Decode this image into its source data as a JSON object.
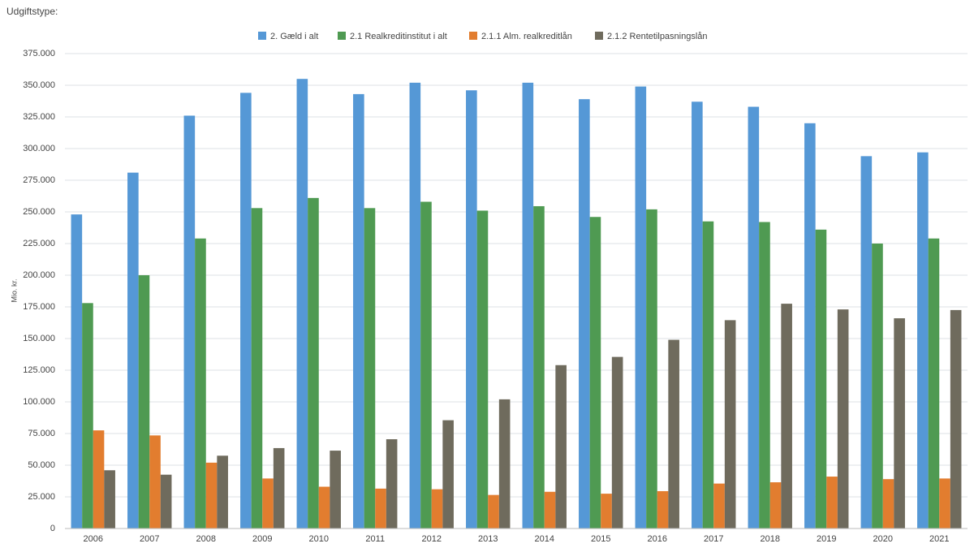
{
  "chart_data": {
    "type": "bar",
    "subtitle": "Udgiftstype:",
    "y_label": "Mio. kr.",
    "categories": [
      "2006",
      "2007",
      "2008",
      "2009",
      "2010",
      "2011",
      "2012",
      "2013",
      "2014",
      "2015",
      "2016",
      "2017",
      "2018",
      "2019",
      "2020",
      "2021"
    ],
    "series": [
      {
        "name": "2. Gæld i alt",
        "color": "#5598d6",
        "values": [
          248000,
          281000,
          326000,
          344000,
          355000,
          343000,
          352000,
          346000,
          352000,
          339000,
          349000,
          337000,
          333000,
          320000,
          294000,
          297000
        ]
      },
      {
        "name": "2.1 Realkreditinstitut i alt",
        "color": "#4f9a52",
        "values": [
          178000,
          200000,
          229000,
          253000,
          261000,
          253000,
          258000,
          251000,
          254500,
          246000,
          252000,
          242500,
          242000,
          236000,
          225000,
          229000
        ]
      },
      {
        "name": "2.1.1 Alm. realkreditlån",
        "color": "#e27d2f",
        "values": [
          77500,
          73500,
          52000,
          39500,
          33000,
          31500,
          31000,
          26500,
          29000,
          27500,
          29500,
          35500,
          36500,
          41000,
          39000,
          39500
        ]
      },
      {
        "name": "2.1.2 Rentetilpasningslån",
        "color": "#6f6b5d",
        "values": [
          46000,
          42500,
          57500,
          63500,
          61500,
          70500,
          85500,
          102000,
          129000,
          135500,
          149000,
          164500,
          177500,
          173000,
          166000,
          172500
        ]
      }
    ],
    "ylim": [
      0,
      375000
    ],
    "yticks": [
      0,
      {
        "value": 25000,
        "label": "25.000"
      },
      {
        "value": 50000,
        "label": "50.000"
      },
      {
        "value": 75000,
        "label": "75.000"
      },
      {
        "value": 100000,
        "label": "100.000"
      },
      {
        "value": 125000,
        "label": "125.000"
      },
      {
        "value": 150000,
        "label": "150.000"
      },
      {
        "value": 175000,
        "label": "175.000"
      },
      {
        "value": 200000,
        "label": "200.000"
      },
      {
        "value": 225000,
        "label": "225.000"
      },
      {
        "value": 250000,
        "label": "250.000"
      },
      {
        "value": 275000,
        "label": "275.000"
      },
      {
        "value": 300000,
        "label": "300.000"
      },
      {
        "value": 325000,
        "label": "325.000"
      },
      {
        "value": 350000,
        "label": "350.000"
      },
      {
        "value": 375000,
        "label": "375.000"
      }
    ],
    "grid": true
  }
}
